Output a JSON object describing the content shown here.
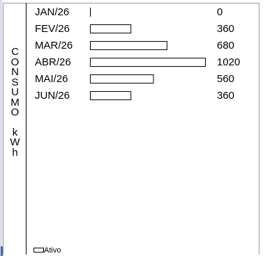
{
  "chart_data": {
    "type": "bar",
    "orientation": "horizontal",
    "ylabel_letters": [
      "C",
      "O",
      "N",
      "S",
      "U",
      "M",
      "O",
      " ",
      "k",
      "W",
      "h"
    ],
    "categories": [
      "JAN/26",
      "FEV/26",
      "MAR/26",
      "ABR/26",
      "MAI/26",
      "JUN/26"
    ],
    "series": [
      {
        "name": "Ativo",
        "values": [
          0,
          360,
          680,
          1020,
          560,
          360
        ]
      }
    ],
    "value_labels": [
      "0",
      "360",
      "680",
      "1020",
      "560",
      "360"
    ],
    "xlim": [
      0,
      1020
    ],
    "legend": {
      "position": "bottom-left",
      "label": "Ativo"
    },
    "grid": false
  },
  "colors": {
    "bar_fill": "#ffffff",
    "bar_stroke": "#000000"
  }
}
